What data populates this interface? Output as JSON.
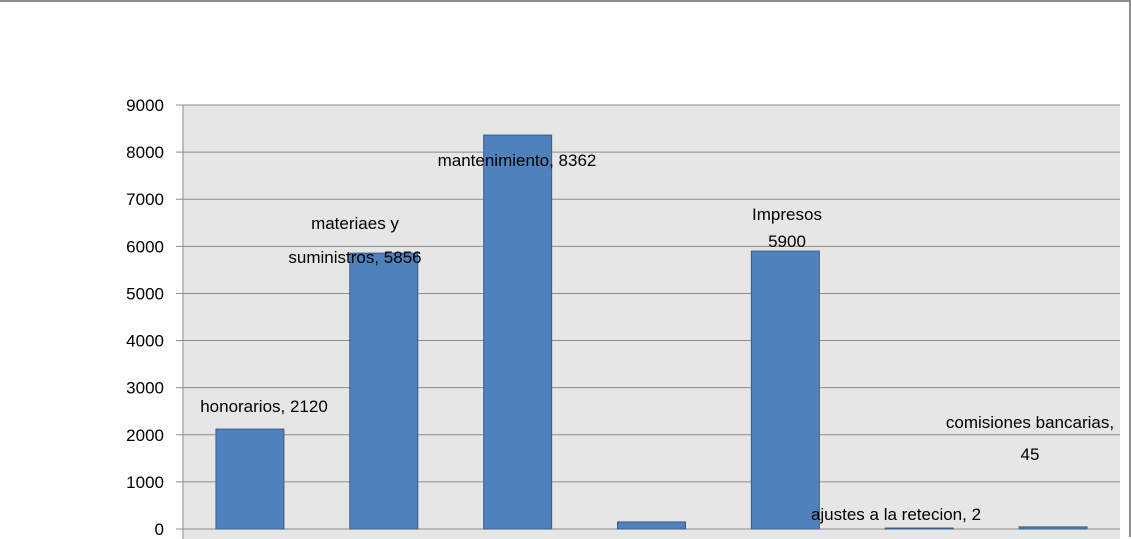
{
  "chart_data": {
    "type": "bar",
    "title": "",
    "xlabel": "",
    "ylabel": "",
    "ylim": [
      0,
      9000
    ],
    "yticks": [
      0,
      1000,
      2000,
      3000,
      4000,
      5000,
      6000,
      7000,
      8000,
      9000
    ],
    "grid": true,
    "legend": "none",
    "categories": [
      "honorarios",
      "materiaes y suministros",
      "mantenimiento",
      "",
      "Impresos",
      "ajustes a la retecion",
      "comisiones bancarias"
    ],
    "values": [
      2120,
      5856,
      8362,
      150,
      5900,
      2,
      45
    ],
    "data_labels": [
      [
        "honorarios, 2120"
      ],
      [
        "materiaes y",
        "suministros, 5856"
      ],
      [
        "mantenimiento, 8362"
      ],
      [],
      [
        "Impresos",
        "5900"
      ],
      [
        "ajustes a la retecion,  2"
      ],
      [
        "comisiones bancarias,",
        "45"
      ]
    ],
    "colors": {
      "bar": "#4f81bd",
      "bar_edge": "#385d8a",
      "plot_background": "#e6e6e6",
      "grid": "#8c8c8c",
      "frame": "#8c8c8c"
    }
  }
}
